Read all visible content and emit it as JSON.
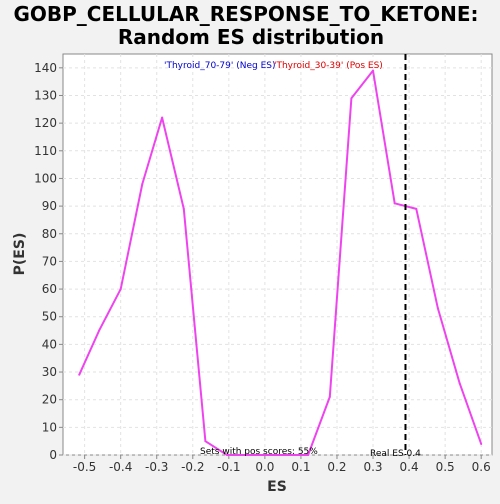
{
  "chart_data": {
    "type": "line",
    "title": "GOBP_CELLULAR_RESPONSE_TO_KETONE:",
    "subtitle": "Random ES distribution",
    "xlabel": "ES",
    "ylabel": "P(ES)",
    "xlim": [
      -0.56,
      0.63
    ],
    "ylim": [
      0,
      145
    ],
    "x_ticks": [
      -0.5,
      -0.4,
      -0.3,
      -0.2,
      -0.1,
      0.0,
      0.1,
      0.2,
      0.3,
      0.4,
      0.5,
      0.6
    ],
    "x_tick_labels": [
      "-0.5",
      "-0.4",
      "-0.3",
      "-0.2",
      "-0.1",
      "0.0",
      "0.1",
      "0.2",
      "0.3",
      "0.4",
      "0.5",
      "0.6"
    ],
    "y_ticks": [
      0,
      10,
      20,
      30,
      40,
      50,
      60,
      70,
      80,
      90,
      100,
      110,
      120,
      130,
      140
    ],
    "y_tick_labels": [
      "0",
      "10",
      "20",
      "30",
      "40",
      "50",
      "60",
      "70",
      "80",
      "90",
      "100",
      "110",
      "120",
      "130",
      "140"
    ],
    "grid": true,
    "series": [
      {
        "color": "#ee44ee",
        "x": [
          -0.515,
          -0.46,
          -0.4,
          -0.34,
          -0.285,
          -0.225,
          -0.165,
          -0.105,
          -0.05,
          0.0,
          0.06,
          0.12,
          0.18,
          0.24,
          0.3,
          0.36,
          0.42,
          0.48,
          0.54,
          0.6
        ],
        "y": [
          29,
          45,
          60,
          98,
          122,
          89,
          5,
          0,
          0,
          0,
          0,
          0,
          21,
          129,
          139,
          91,
          89,
          53,
          26,
          4
        ]
      }
    ],
    "legend": {
      "neg_label": "'Thyroid_70-79' (Neg ES)",
      "pos_label": "'Thyroid_30-39' (Pos ES)",
      "neg_color": "#0000cc",
      "pos_color": "#dd0000"
    },
    "real_es": {
      "value": 0.39,
      "label": "Real ES 0.4"
    },
    "annotation": "Sets with pos scores: 55%"
  }
}
